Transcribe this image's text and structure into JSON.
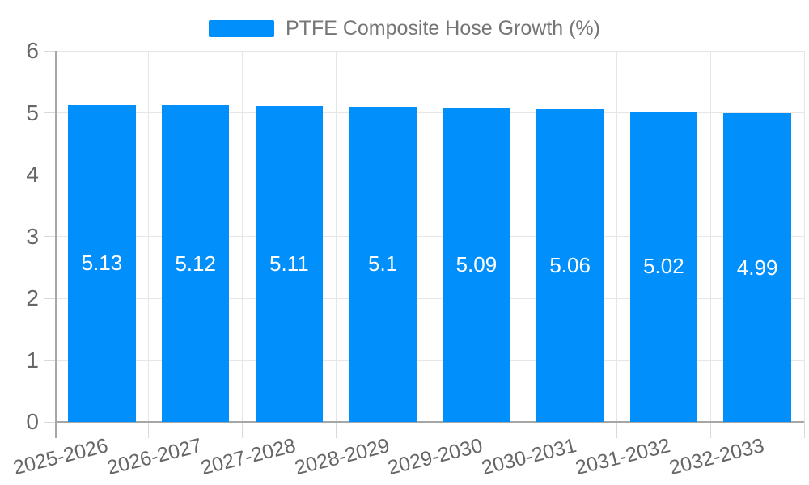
{
  "legend": {
    "label": "PTFE Composite Hose Growth (%)"
  },
  "chart_data": {
    "type": "bar",
    "title": "",
    "categories": [
      "2025-2026",
      "2026-2027",
      "2027-2028",
      "2028-2029",
      "2029-2030",
      "2030-2031",
      "2031-2032",
      "2032-2033"
    ],
    "values": [
      5.13,
      5.12,
      5.11,
      5.1,
      5.09,
      5.06,
      5.02,
      4.99
    ],
    "series_name": "PTFE Composite Hose Growth (%)",
    "xlabel": "",
    "ylabel": "",
    "ylim": [
      0,
      6
    ],
    "yticks": [
      0,
      1,
      2,
      3,
      4,
      5,
      6
    ],
    "grid": true,
    "data_labels": true,
    "legend_position": "top"
  },
  "colors": {
    "bar": "#008FFB",
    "grid": "#e6e6e6",
    "axis": "#a6a6a6",
    "axis_text": "#666666",
    "legend_text": "#757575",
    "value_label": "#ffffff",
    "background": "#ffffff"
  }
}
